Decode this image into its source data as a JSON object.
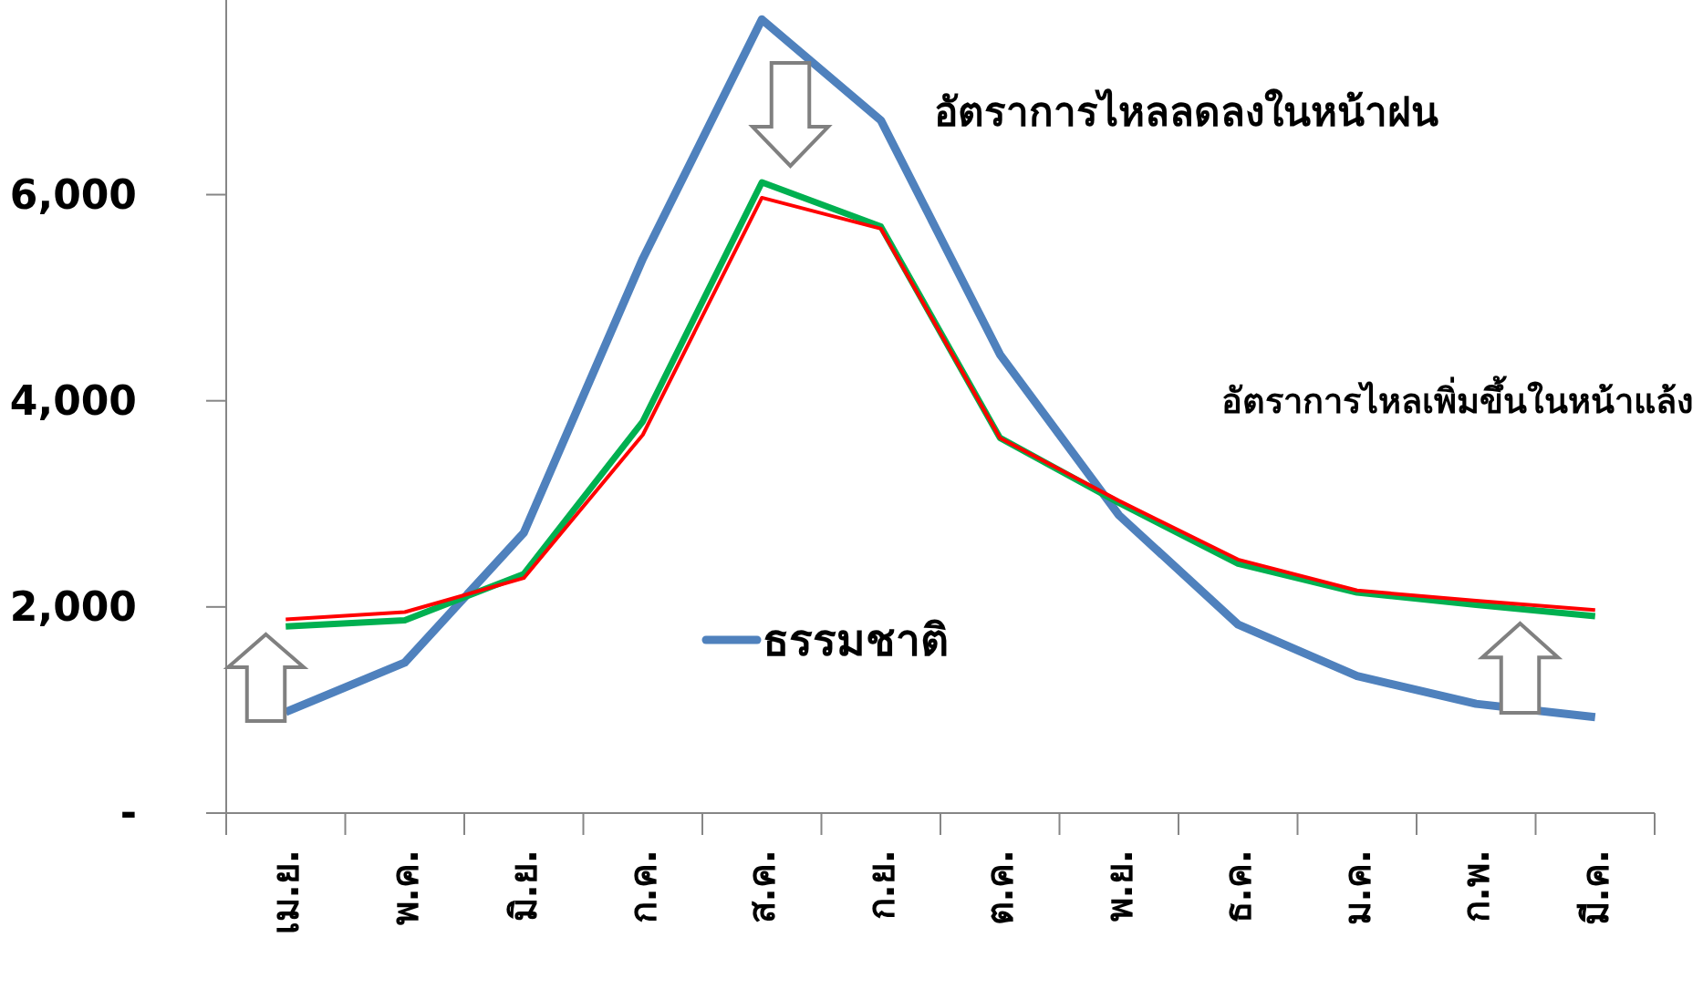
{
  "chart_data": {
    "type": "line",
    "categories": [
      "เม.ย.",
      "พ.ค.",
      "มิ.ย.",
      "ก.ค.",
      "ส.ค.",
      "ก.ย.",
      "ต.ค.",
      "พ.ย.",
      "ธ.ค.",
      "ม.ค.",
      "ก.พ.",
      "มี.ค."
    ],
    "series": [
      {
        "name": "ธรรมชาติ",
        "color": "#4f81bd",
        "values": [
          980,
          1460,
          2720,
          5380,
          7700,
          6720,
          4450,
          2890,
          1830,
          1330,
          1060,
          930
        ]
      },
      {
        "color": "#00b050",
        "values": [
          1810,
          1870,
          2320,
          3800,
          6120,
          5690,
          3640,
          3010,
          2420,
          2140,
          2020,
          1910
        ]
      },
      {
        "color": "#ff0000",
        "values": [
          1880,
          1950,
          2280,
          3670,
          5970,
          5670,
          3640,
          3030,
          2460,
          2160,
          2060,
          1970
        ]
      }
    ],
    "ylim": [
      0,
      7800
    ],
    "yticks": [
      {
        "value": 0,
        "label": "-"
      },
      {
        "value": 2000,
        "label": "2,000"
      },
      {
        "value": 4000,
        "label": "4,000"
      },
      {
        "value": 6000,
        "label": "6,000"
      }
    ],
    "legend": "center",
    "annotations": [
      "อัตราการไหลลดลงในหน้าฝน",
      "อัตราการไหลเพิ่มขึ้นในหน้าแล้ง"
    ]
  }
}
